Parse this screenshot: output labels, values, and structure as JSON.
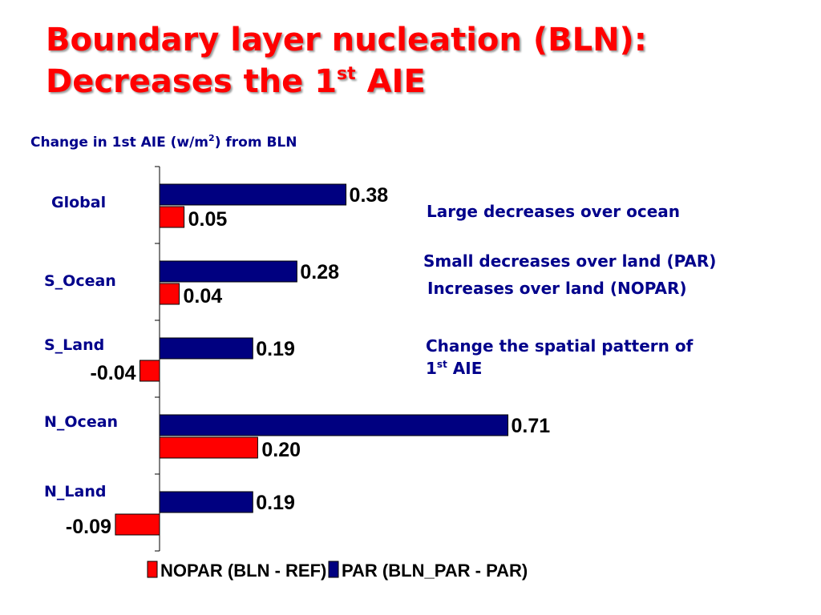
{
  "slide": {
    "title_line1": "Boundary layer nucleation (BLN):",
    "title_line2_prefix": "Decreases the 1",
    "title_line2_sup": "st",
    "title_line2_suffix": " AIE",
    "subtitle_prefix": "Change in 1st AIE (w/m",
    "subtitle_sup": "2",
    "subtitle_suffix": ") from BLN",
    "annotations": {
      "a1": "Large decreases over ocean",
      "a2": "Small decreases over land (PAR)",
      "a3": "Increases over land (NOPAR)",
      "a4_line1": "Change the spatial pattern of",
      "a4_line2_prefix": "1",
      "a4_line2_sup": "st",
      "a4_line2_suffix": " AIE"
    }
  },
  "colors": {
    "title": "#ff0000",
    "text": "#00008b",
    "par": "#000080",
    "nopar": "#ff0000"
  },
  "chart_data": {
    "type": "bar",
    "orientation": "horizontal",
    "categories": [
      "Global",
      "S_Ocean",
      "S_Land",
      "N_Ocean",
      "N_Land"
    ],
    "series": [
      {
        "name": "PAR (BLN_PAR - PAR)",
        "values": [
          0.38,
          0.28,
          0.19,
          0.71,
          0.19
        ]
      },
      {
        "name": "NOPAR (BLN - REF)",
        "values": [
          0.05,
          0.04,
          -0.04,
          0.2,
          -0.09
        ]
      }
    ],
    "value_labels": {
      "PAR (BLN_PAR - PAR)": [
        "0.38",
        "0.28",
        "0.19",
        "0.71",
        "0.19"
      ],
      "NOPAR (BLN - REF)": [
        "0.05",
        "0.04",
        "-0.04",
        "0.20",
        "-0.09"
      ]
    },
    "legend_order": [
      "NOPAR (BLN - REF)",
      "PAR (BLN_PAR - PAR)"
    ],
    "legend_position": "bottom",
    "grid": false
  }
}
